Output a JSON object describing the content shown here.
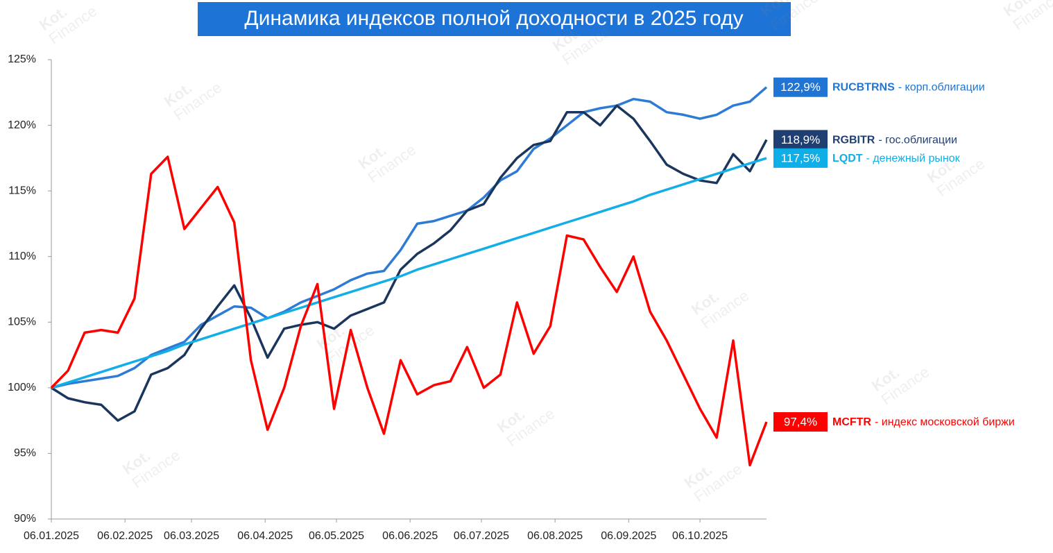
{
  "chart_data": {
    "type": "line",
    "title": "Динамика индексов полной доходности в 2025 году",
    "watermark": [
      "Kot.",
      "Finance"
    ],
    "x": [
      "06.01.2025",
      "13.01.2025",
      "20.01.2025",
      "27.01.2025",
      "03.02.2025",
      "10.02.2025",
      "17.02.2025",
      "24.02.2025",
      "03.03.2025",
      "10.03.2025",
      "17.03.2025",
      "24.03.2025",
      "31.03.2025",
      "07.04.2025",
      "14.04.2025",
      "21.04.2025",
      "28.04.2025",
      "05.05.2025",
      "12.05.2025",
      "19.05.2025",
      "26.05.2025",
      "02.06.2025",
      "09.06.2025",
      "16.06.2025",
      "23.06.2025",
      "30.06.2025",
      "07.07.2025",
      "14.07.2025",
      "21.07.2025",
      "28.07.2025",
      "04.08.2025",
      "11.08.2025",
      "18.08.2025",
      "25.08.2025",
      "01.09.2025",
      "08.09.2025",
      "15.09.2025",
      "22.09.2025",
      "29.09.2025",
      "06.10.2025",
      "13.10.2025",
      "20.10.2025",
      "27.10.2025",
      "03.11.2025"
    ],
    "xlim": [
      "06.01.2025",
      "03.11.2025"
    ],
    "xticks": [
      "06.01.2025",
      "06.02.2025",
      "06.03.2025",
      "06.04.2025",
      "06.05.2025",
      "06.06.2025",
      "06.07.2025",
      "06.08.2025",
      "06.09.2025",
      "06.10.2025"
    ],
    "ylim": [
      90,
      125
    ],
    "yticks": [
      {
        "value": 90,
        "label": "90%"
      },
      {
        "value": 95,
        "label": "95%"
      },
      {
        "value": 100,
        "label": "100%"
      },
      {
        "value": 105,
        "label": "105%"
      },
      {
        "value": 110,
        "label": "110%"
      },
      {
        "value": 115,
        "label": "115%"
      },
      {
        "value": 120,
        "label": "120%"
      },
      {
        "value": 125,
        "label": "125%"
      }
    ],
    "grid": false,
    "series": [
      {
        "name": "RUCBTRNS",
        "description": "- корп.облигации",
        "color": "#2e7bd6",
        "label_color": "#1f74d4",
        "values": [
          100.0,
          100.3,
          100.5,
          100.7,
          100.9,
          101.5,
          102.5,
          103.0,
          103.5,
          104.8,
          105.5,
          106.2,
          106.1,
          105.3,
          105.8,
          106.5,
          107.0,
          107.5,
          108.2,
          108.7,
          108.9,
          110.5,
          112.5,
          112.7,
          113.1,
          113.5,
          114.5,
          115.8,
          116.5,
          118.2,
          119.0,
          120.0,
          121.0,
          121.3,
          121.5,
          122.0,
          121.8,
          121.0,
          120.8,
          120.5,
          120.8,
          121.5,
          121.8,
          122.9
        ],
        "last_label": "122,9%"
      },
      {
        "name": "RGBITR",
        "description": "- гос.облигации",
        "color": "#1b365d",
        "label_color": "#1f3f73",
        "values": [
          100.0,
          99.2,
          98.9,
          98.7,
          97.5,
          98.2,
          101.0,
          101.5,
          102.5,
          104.5,
          106.2,
          107.8,
          105.3,
          102.3,
          104.5,
          104.8,
          105.0,
          104.5,
          105.5,
          106.0,
          106.5,
          109.0,
          110.2,
          111.0,
          112.0,
          113.5,
          114.0,
          116.0,
          117.5,
          118.5,
          118.8,
          121.0,
          121.0,
          120.0,
          121.5,
          120.5,
          118.8,
          117.0,
          116.3,
          115.8,
          115.6,
          117.8,
          116.5,
          118.9
        ],
        "last_label": "118,9%"
      },
      {
        "name": "LQDT",
        "description": "- денежный рынок",
        "color": "#13aee8",
        "label_color": "#10aee6",
        "values": [
          100.0,
          100.4,
          100.8,
          101.2,
          101.6,
          102.0,
          102.4,
          102.8,
          103.3,
          103.7,
          104.1,
          104.5,
          104.9,
          105.3,
          105.7,
          106.1,
          106.5,
          106.9,
          107.3,
          107.7,
          108.1,
          108.5,
          109.0,
          109.4,
          109.8,
          110.2,
          110.6,
          111.0,
          111.4,
          111.8,
          112.2,
          112.6,
          113.0,
          113.4,
          113.8,
          114.2,
          114.7,
          115.1,
          115.5,
          115.9,
          116.3,
          116.7,
          117.1,
          117.5
        ],
        "last_label": "117,5%"
      },
      {
        "name": "MCFTR",
        "description": "- индекс московской биржи",
        "color": "#ff0000",
        "label_color": "#ff0000",
        "values": [
          100.0,
          101.3,
          104.2,
          104.4,
          104.2,
          106.8,
          116.3,
          117.6,
          112.1,
          113.7,
          115.3,
          112.6,
          102.1,
          96.8,
          100.0,
          104.7,
          107.9,
          98.4,
          104.4,
          100.0,
          96.5,
          102.1,
          99.5,
          100.2,
          100.5,
          103.1,
          100.0,
          101.0,
          106.5,
          102.6,
          104.7,
          111.6,
          111.3,
          109.2,
          107.3,
          110.0,
          105.8,
          103.6,
          101.0,
          98.4,
          96.2,
          103.6,
          94.1,
          97.4
        ],
        "last_label": "97,4%"
      }
    ]
  }
}
